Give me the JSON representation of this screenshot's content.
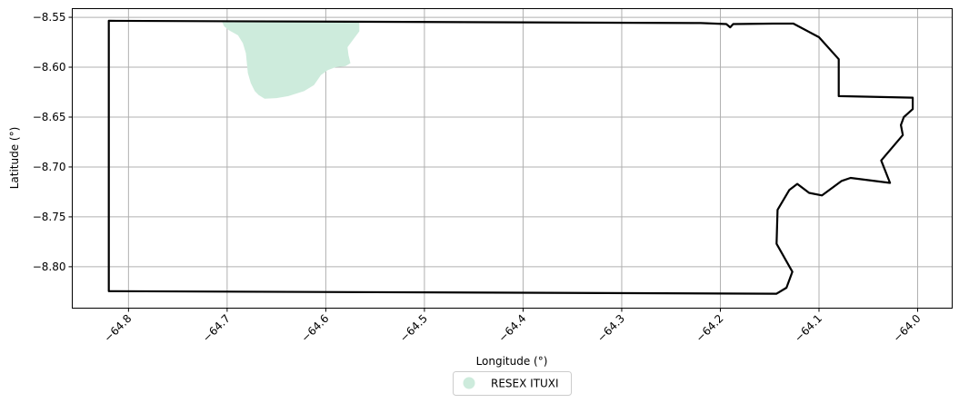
{
  "chart_data": {
    "type": "map",
    "xlabel": "Longitude (°)",
    "ylabel": "Latitude (°)",
    "xlim": [
      -64.857,
      -63.965
    ],
    "ylim": [
      -8.8415,
      -8.5413
    ],
    "grid": true,
    "x_ticks": [
      -64.8,
      -64.7,
      -64.6,
      -64.5,
      -64.4,
      -64.3,
      -64.2,
      -64.1,
      -64.0
    ],
    "x_tick_labels": [
      "−64.8",
      "−64.7",
      "−64.6",
      "−64.5",
      "−64.4",
      "−64.3",
      "−64.2",
      "−64.1",
      "−64.0"
    ],
    "y_ticks": [
      -8.55,
      -8.6,
      -8.65,
      -8.7,
      -8.75,
      -8.8
    ],
    "y_tick_labels": [
      "−8.55",
      "−8.60",
      "−8.65",
      "−8.70",
      "−8.75",
      "−8.80"
    ],
    "legend": {
      "placement": "bottom-center",
      "entries": [
        {
          "label": "RESEX ITUXI",
          "color": "#cdebdc",
          "marker": "circle"
        }
      ]
    },
    "boundary": {
      "color": "#000000",
      "coords": [
        [
          -64.82,
          -8.5535
        ],
        [
          -64.22,
          -8.5558
        ],
        [
          -64.194,
          -8.5568
        ],
        [
          -64.19,
          -8.56
        ],
        [
          -64.187,
          -8.5568
        ],
        [
          -64.147,
          -8.5563
        ],
        [
          -64.126,
          -8.5563
        ],
        [
          -64.1,
          -8.57
        ],
        [
          -64.08,
          -8.592
        ],
        [
          -64.08,
          -8.629
        ],
        [
          -64.005,
          -8.6305
        ],
        [
          -64.005,
          -8.642
        ],
        [
          -64.014,
          -8.65
        ],
        [
          -64.017,
          -8.658
        ],
        [
          -64.015,
          -8.668
        ],
        [
          -64.037,
          -8.6935
        ],
        [
          -64.028,
          -8.716
        ],
        [
          -64.068,
          -8.711
        ],
        [
          -64.077,
          -8.714
        ],
        [
          -64.097,
          -8.7285
        ],
        [
          -64.11,
          -8.726
        ],
        [
          -64.122,
          -8.717
        ],
        [
          -64.13,
          -8.723
        ],
        [
          -64.142,
          -8.743
        ],
        [
          -64.143,
          -8.777
        ],
        [
          -64.127,
          -8.805
        ],
        [
          -64.133,
          -8.821
        ],
        [
          -64.143,
          -8.827
        ],
        [
          -64.82,
          -8.8245
        ]
      ]
    },
    "protected_area": {
      "name": "RESEX ITUXI",
      "color": "#cdebdc",
      "coords": [
        [
          -64.705,
          -8.555
        ],
        [
          -64.566,
          -8.555
        ],
        [
          -64.566,
          -8.564
        ],
        [
          -64.572,
          -8.572
        ],
        [
          -64.578,
          -8.58
        ],
        [
          -64.577,
          -8.588
        ],
        [
          -64.575,
          -8.596
        ],
        [
          -64.58,
          -8.599
        ],
        [
          -64.59,
          -8.6
        ],
        [
          -64.598,
          -8.603
        ],
        [
          -64.605,
          -8.608
        ],
        [
          -64.612,
          -8.618
        ],
        [
          -64.622,
          -8.624
        ],
        [
          -64.638,
          -8.629
        ],
        [
          -64.65,
          -8.631
        ],
        [
          -64.662,
          -8.6315
        ],
        [
          -64.668,
          -8.628
        ],
        [
          -64.672,
          -8.624
        ],
        [
          -64.676,
          -8.616
        ],
        [
          -64.679,
          -8.606
        ],
        [
          -64.68,
          -8.596
        ],
        [
          -64.681,
          -8.586
        ],
        [
          -64.684,
          -8.576
        ],
        [
          -64.689,
          -8.568
        ],
        [
          -64.698,
          -8.563
        ],
        [
          -64.703,
          -8.559
        ]
      ]
    }
  }
}
